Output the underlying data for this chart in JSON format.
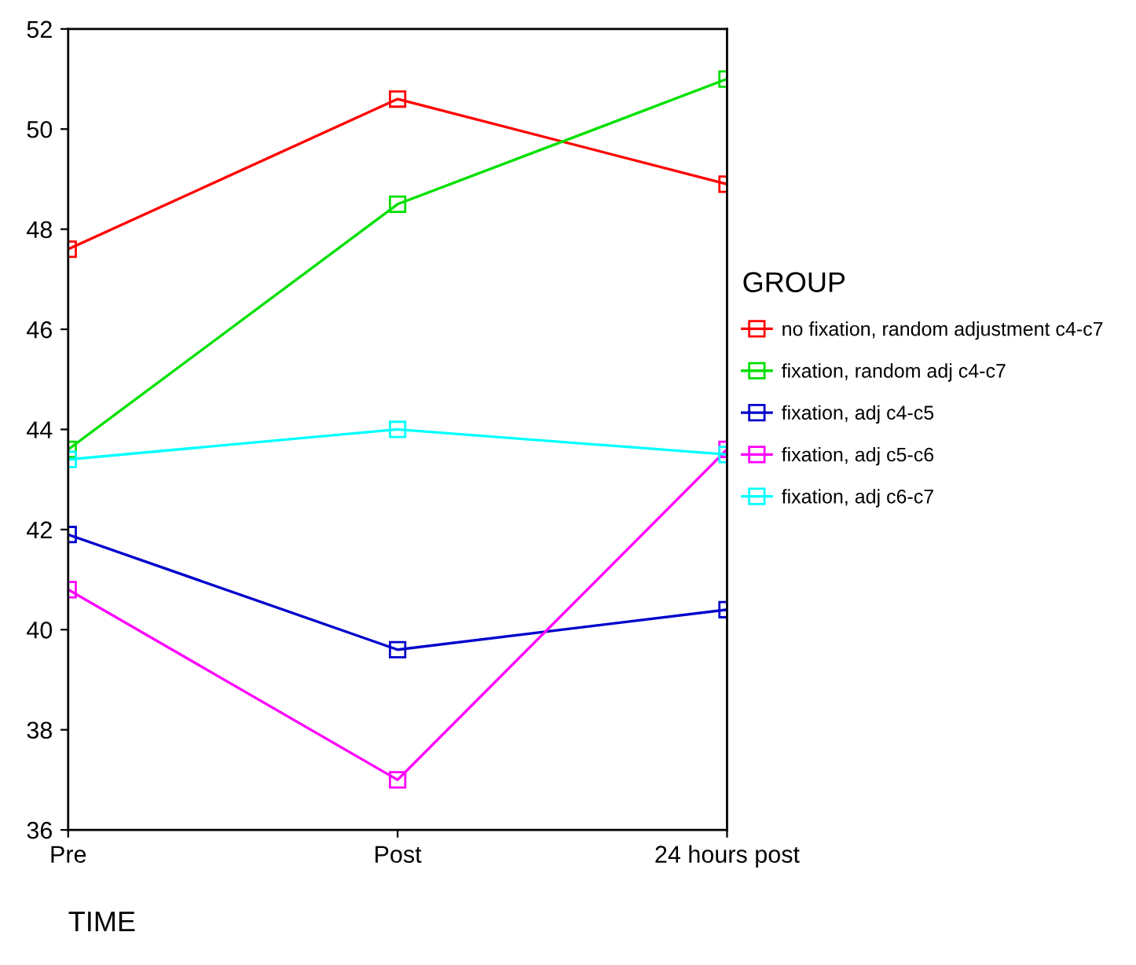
{
  "chart_data": {
    "type": "line",
    "xlabel": "TIME",
    "legend_title": "GROUP",
    "categories": [
      "Pre",
      "Post",
      "24 hours post"
    ],
    "series": [
      {
        "name": "no fixation, random adjustment c4-c7",
        "color": "#ff0000",
        "values": [
          47.6,
          50.6,
          48.9
        ]
      },
      {
        "name": "fixation, random adj c4-c7",
        "color": "#00e000",
        "values": [
          43.6,
          48.5,
          51.0
        ]
      },
      {
        "name": "fixation, adj c4-c5",
        "color": "#0000cc",
        "values": [
          41.9,
          39.6,
          40.4
        ]
      },
      {
        "name": "fixation, adj c5-c6",
        "color": "#ff00ff",
        "values": [
          40.8,
          37.0,
          43.6
        ]
      },
      {
        "name": "fixation, adj c6-c7",
        "color": "#00ffff",
        "values": [
          43.4,
          44.0,
          43.5
        ]
      }
    ],
    "ylim": [
      36,
      52
    ],
    "yticks": [
      36,
      38,
      40,
      42,
      44,
      46,
      48,
      50,
      52
    ],
    "marker": "square",
    "legend": "right",
    "grid": false
  }
}
